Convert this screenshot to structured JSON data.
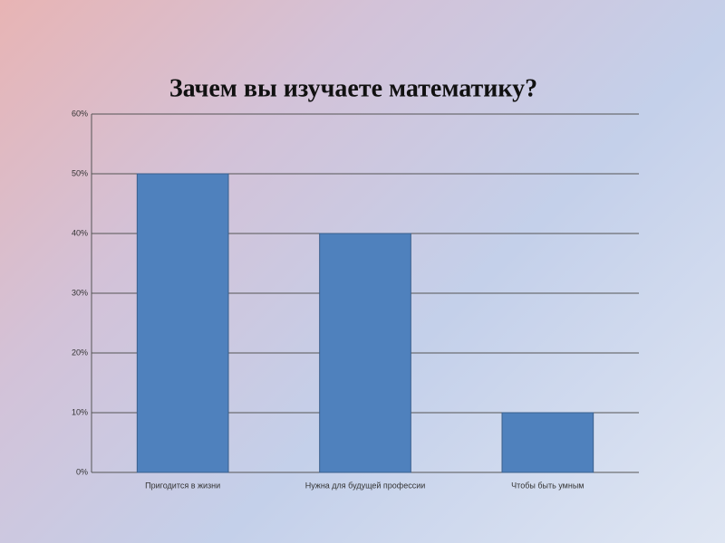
{
  "chart_data": {
    "type": "bar",
    "title": "Зачем вы изучаете математику?",
    "categories": [
      "Пригодится в жизни",
      "Нужна для будущей профессии",
      "Чтобы быть умным"
    ],
    "values": [
      50,
      40,
      10
    ],
    "color": "#4f81bd",
    "ylim": [
      0,
      60
    ],
    "yticks": [
      {
        "value": 0,
        "label": "0%"
      },
      {
        "value": 10,
        "label": "10%"
      },
      {
        "value": 20,
        "label": "20%"
      },
      {
        "value": 30,
        "label": "30%"
      },
      {
        "value": 40,
        "label": "40%"
      },
      {
        "value": 50,
        "label": "50%"
      },
      {
        "value": 60,
        "label": "60%"
      }
    ],
    "grid": true
  }
}
